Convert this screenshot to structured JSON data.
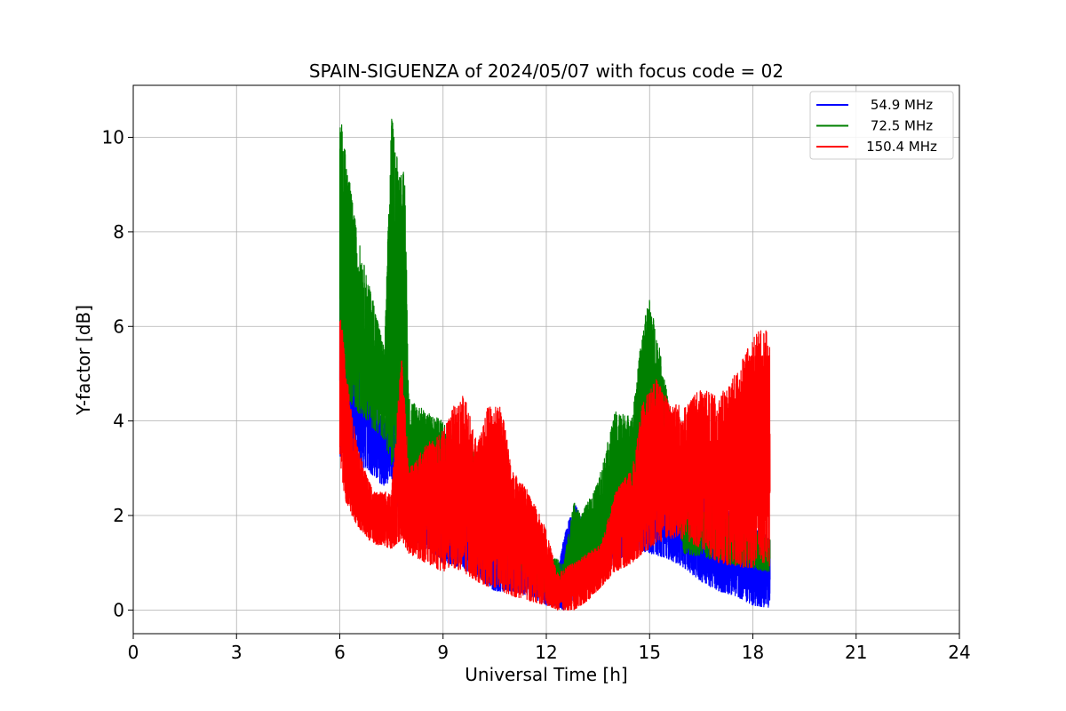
{
  "chart_data": {
    "type": "line",
    "title": "SPAIN-SIGUENZA of 2024/05/07 with focus code = 02",
    "xlabel": "Universal Time [h]",
    "ylabel": "Y-factor [dB]",
    "xlim": [
      0,
      24
    ],
    "ylim": [
      -0.5,
      11.1
    ],
    "xticks": [
      0,
      3,
      6,
      9,
      12,
      15,
      18,
      21,
      24
    ],
    "yticks": [
      0,
      2,
      4,
      6,
      8,
      10
    ],
    "grid": true,
    "legend_position": "top-right",
    "series": [
      {
        "name": "54.9 MHz",
        "color": "#0000ff",
        "envelope": [
          [
            6.0,
            3.0,
            8.5
          ],
          [
            6.2,
            3.5,
            7.2
          ],
          [
            6.5,
            3.0,
            6.8
          ],
          [
            6.8,
            3.0,
            5.5
          ],
          [
            7.0,
            2.8,
            4.5
          ],
          [
            7.3,
            2.6,
            4.0
          ],
          [
            7.5,
            2.8,
            4.5
          ],
          [
            7.8,
            1.8,
            3.0
          ],
          [
            8.0,
            1.5,
            3.0
          ],
          [
            8.5,
            1.3,
            2.5
          ],
          [
            9.0,
            1.0,
            2.3
          ],
          [
            9.5,
            0.9,
            2.2
          ],
          [
            10.0,
            0.7,
            2.0
          ],
          [
            10.5,
            0.4,
            1.6
          ],
          [
            11.0,
            0.4,
            1.4
          ],
          [
            11.5,
            0.3,
            1.3
          ],
          [
            12.0,
            0.1,
            0.9
          ],
          [
            12.3,
            0.1,
            0.7
          ],
          [
            12.5,
            0.0,
            1.5
          ],
          [
            12.8,
            0.2,
            2.3
          ],
          [
            13.0,
            0.4,
            2.0
          ],
          [
            13.5,
            0.6,
            2.2
          ],
          [
            14.0,
            1.0,
            2.8
          ],
          [
            14.5,
            1.3,
            2.8
          ],
          [
            15.0,
            1.2,
            3.2
          ],
          [
            15.5,
            1.1,
            3.9
          ],
          [
            16.0,
            0.9,
            2.8
          ],
          [
            16.5,
            0.6,
            2.5
          ],
          [
            17.0,
            0.4,
            2.3
          ],
          [
            17.5,
            0.3,
            2.0
          ],
          [
            18.0,
            0.1,
            2.0
          ],
          [
            18.5,
            0.05,
            1.5
          ]
        ]
      },
      {
        "name": "72.5 MHz",
        "color": "#008000",
        "envelope": [
          [
            6.0,
            3.5,
            10.6
          ],
          [
            6.2,
            4.5,
            9.5
          ],
          [
            6.5,
            4.2,
            8.0
          ],
          [
            6.8,
            4.0,
            7.0
          ],
          [
            7.0,
            3.8,
            6.5
          ],
          [
            7.3,
            3.6,
            5.5
          ],
          [
            7.5,
            3.0,
            10.5
          ],
          [
            7.7,
            3.5,
            9.5
          ],
          [
            7.9,
            3.0,
            9.2
          ],
          [
            8.0,
            2.5,
            4.5
          ],
          [
            8.5,
            2.4,
            4.2
          ],
          [
            9.0,
            2.2,
            4.0
          ],
          [
            9.5,
            1.8,
            3.5
          ],
          [
            10.0,
            1.6,
            3.4
          ],
          [
            10.5,
            1.3,
            2.8
          ],
          [
            11.0,
            0.9,
            2.5
          ],
          [
            11.5,
            0.7,
            2.0
          ],
          [
            12.0,
            0.3,
            1.2
          ],
          [
            12.5,
            0.2,
            1.0
          ],
          [
            12.8,
            0.8,
            2.3
          ],
          [
            13.0,
            0.9,
            2.0
          ],
          [
            13.5,
            1.0,
            2.7
          ],
          [
            14.0,
            1.8,
            4.2
          ],
          [
            14.5,
            2.4,
            4.1
          ],
          [
            14.8,
            2.8,
            6.0
          ],
          [
            15.0,
            3.5,
            6.6
          ],
          [
            15.3,
            3.0,
            5.5
          ],
          [
            15.6,
            2.8,
            4.2
          ],
          [
            16.0,
            1.2,
            2.6
          ],
          [
            18.5,
            0.8,
            1.5
          ]
        ]
      },
      {
        "name": "150.4 MHz",
        "color": "#ff0000",
        "envelope": [
          [
            6.0,
            3.0,
            6.5
          ],
          [
            6.2,
            2.2,
            5.0
          ],
          [
            6.5,
            1.8,
            3.5
          ],
          [
            6.8,
            1.5,
            2.8
          ],
          [
            7.0,
            1.4,
            2.5
          ],
          [
            7.5,
            1.3,
            2.5
          ],
          [
            7.8,
            1.5,
            5.5
          ],
          [
            8.0,
            1.2,
            3.0
          ],
          [
            8.5,
            1.0,
            3.5
          ],
          [
            9.0,
            0.8,
            3.8
          ],
          [
            9.3,
            0.9,
            4.3
          ],
          [
            9.6,
            0.8,
            4.6
          ],
          [
            10.0,
            0.6,
            3.5
          ],
          [
            10.3,
            0.5,
            4.3
          ],
          [
            10.7,
            0.4,
            4.3
          ],
          [
            11.0,
            0.3,
            3.0
          ],
          [
            11.5,
            0.2,
            2.5
          ],
          [
            12.0,
            0.1,
            1.7
          ],
          [
            12.3,
            0.0,
            0.8
          ],
          [
            12.8,
            0.0,
            1.0
          ],
          [
            13.2,
            0.2,
            1.2
          ],
          [
            13.6,
            0.5,
            1.4
          ],
          [
            14.0,
            0.8,
            2.5
          ],
          [
            14.5,
            1.0,
            3.0
          ],
          [
            14.8,
            1.2,
            4.4
          ],
          [
            15.2,
            1.4,
            4.9
          ],
          [
            15.5,
            1.5,
            4.5
          ],
          [
            16.0,
            1.5,
            4.3
          ],
          [
            16.5,
            1.3,
            4.7
          ],
          [
            17.0,
            1.0,
            4.5
          ],
          [
            17.5,
            0.9,
            5.0
          ],
          [
            18.0,
            0.9,
            5.8
          ],
          [
            18.3,
            1.0,
            6.0
          ],
          [
            18.5,
            0.9,
            5.8
          ]
        ]
      }
    ]
  }
}
